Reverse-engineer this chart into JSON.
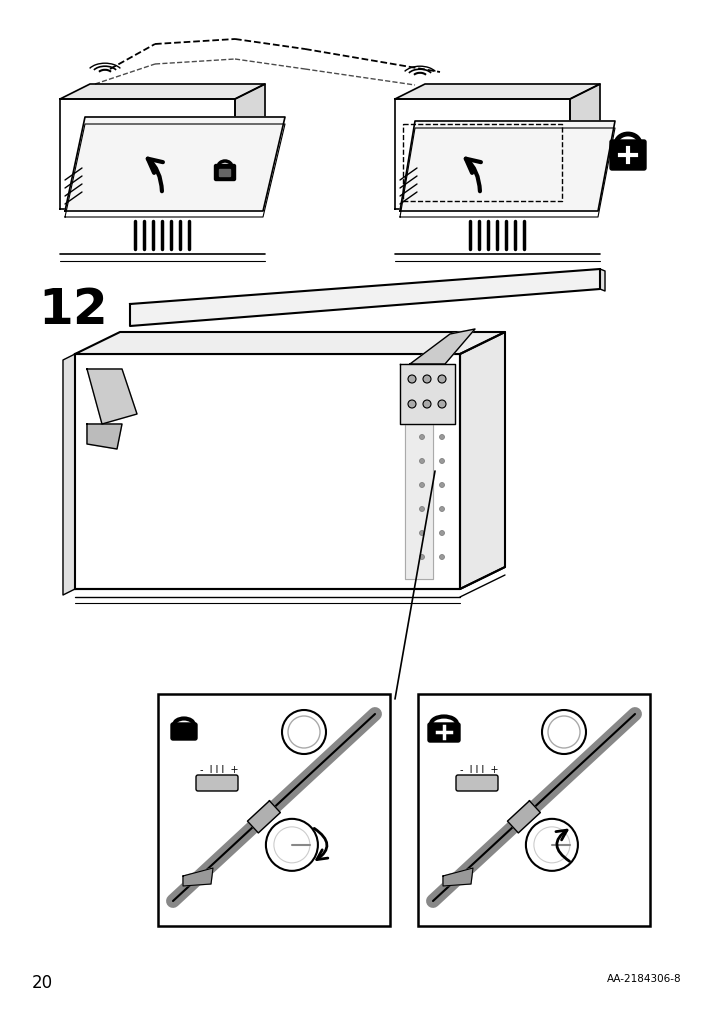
{
  "page_number": "20",
  "doc_code": "AA-2184306-8",
  "step_number": "12",
  "bg_color": "#ffffff",
  "line_color": "#000000",
  "fig_width": 7.14,
  "fig_height": 10.12,
  "dpi": 100
}
